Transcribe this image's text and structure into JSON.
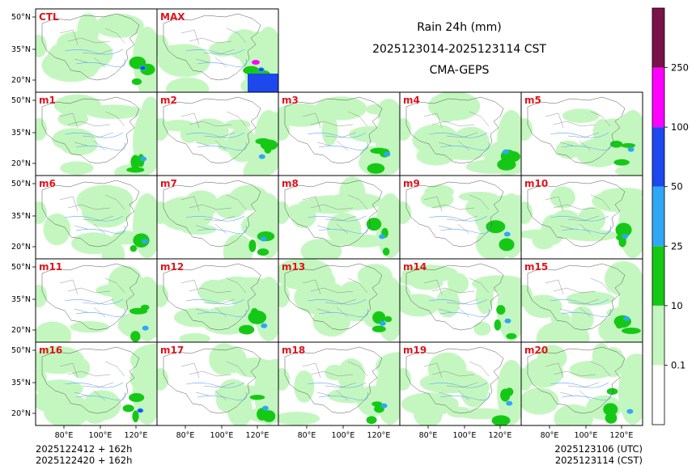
{
  "title": {
    "line1": "Rain 24h (mm)",
    "line2": "2025123014-2025123114 CST",
    "line3": "CMA-GEPS"
  },
  "footer": {
    "init_utc": "2025122412 + 162h",
    "init_cst": "2025122420 + 162h",
    "valid_utc": "2025123106 (UTC)",
    "valid_cst": "2025123114 (CST)"
  },
  "axes": {
    "lat_labels": [
      "50°N",
      "35°N",
      "20°N"
    ],
    "lon_labels": [
      "80°E",
      "100°E",
      "120°E"
    ]
  },
  "members_top": [
    "CTL",
    "MAX"
  ],
  "members_grid": [
    [
      "m1",
      "m2",
      "m3",
      "m4",
      "m5"
    ],
    [
      "m6",
      "m7",
      "m8",
      "m9",
      "m10"
    ],
    [
      "m11",
      "m12",
      "m13",
      "m14",
      "m15"
    ],
    [
      "m16",
      "m17",
      "m18",
      "m19",
      "m20"
    ]
  ],
  "colorbar": {
    "ticks": [
      "0.1",
      "10",
      "25",
      "50",
      "100",
      "250"
    ],
    "colors": [
      "#ffffff",
      "#c4f7c0",
      "#16c816",
      "#2ea8f5",
      "#1c48ee",
      "#ff00ff",
      "#7b124a"
    ]
  },
  "colors": {
    "light_rain": "#c4f7c0",
    "moderate_rain": "#16c816",
    "heavy_rain": "#2ea8f5",
    "rainstorm": "#1c48ee",
    "severe": "#ff00ff",
    "label_red": "#e0141c"
  }
}
